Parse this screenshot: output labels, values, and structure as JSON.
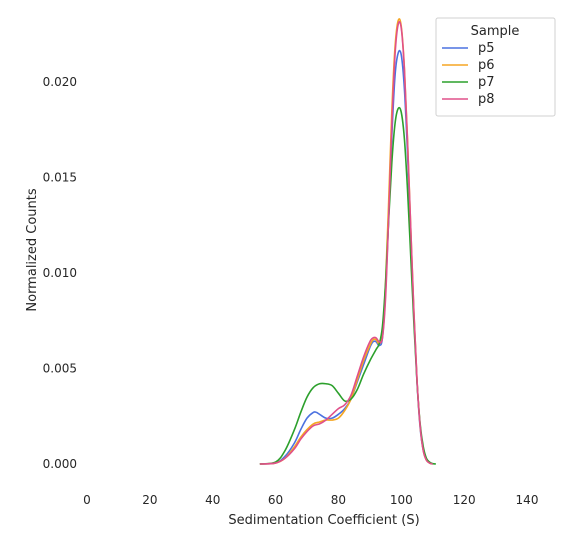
{
  "chart_data": {
    "type": "line",
    "xlabel": "Sedimentation Coefficient (S)",
    "ylabel": "Normalized Counts",
    "xlim": [
      0,
      140
    ],
    "ylim": [
      0,
      0.0235
    ],
    "xticks": [
      0,
      20,
      40,
      60,
      80,
      100,
      120,
      140
    ],
    "yticks": [
      0.0,
      0.005,
      0.01,
      0.015,
      0.02
    ],
    "ytick_labels": [
      "0.000",
      "0.005",
      "0.010",
      "0.015",
      "0.020"
    ],
    "grid": false,
    "legend": {
      "title": "Sample",
      "placement": "top-right"
    },
    "series": [
      {
        "name": "p5",
        "color": "#4c72e0",
        "x": [
          55,
          60,
          63,
          66,
          68,
          70,
          72,
          73,
          74,
          76,
          78,
          80,
          82,
          84,
          86,
          88,
          90,
          91,
          92,
          93,
          94,
          95,
          96,
          97,
          98,
          99,
          100,
          101,
          102,
          103,
          104,
          105,
          106,
          107,
          108,
          109,
          110
        ],
        "y": [
          0.0,
          5e-05,
          0.0004,
          0.0011,
          0.0018,
          0.0024,
          0.0027,
          0.0027,
          0.0026,
          0.0024,
          0.0024,
          0.0026,
          0.0029,
          0.0034,
          0.0043,
          0.0052,
          0.0061,
          0.0064,
          0.0064,
          0.0062,
          0.0066,
          0.009,
          0.013,
          0.0172,
          0.0203,
          0.0215,
          0.0214,
          0.0196,
          0.0162,
          0.012,
          0.0078,
          0.0043,
          0.0019,
          0.0007,
          0.0002,
          5e-05,
          0.0
        ]
      },
      {
        "name": "p6",
        "color": "#f5a623",
        "x": [
          55,
          60,
          63,
          66,
          68,
          70,
          72,
          74,
          76,
          78,
          80,
          82,
          84,
          86,
          88,
          90,
          91,
          92,
          93,
          94,
          95,
          96,
          97,
          98,
          99,
          100,
          101,
          102,
          103,
          104,
          105,
          106,
          107,
          108,
          109,
          110
        ],
        "y": [
          0.0,
          5e-05,
          0.0003,
          0.0009,
          0.0014,
          0.0018,
          0.0021,
          0.0022,
          0.0023,
          0.0023,
          0.0024,
          0.0028,
          0.0034,
          0.0044,
          0.0054,
          0.0062,
          0.0065,
          0.0065,
          0.0063,
          0.0068,
          0.0095,
          0.0138,
          0.0185,
          0.0218,
          0.0232,
          0.0229,
          0.0207,
          0.0169,
          0.0124,
          0.008,
          0.0044,
          0.002,
          0.0007,
          0.0002,
          5e-05,
          0.0
        ]
      },
      {
        "name": "p7",
        "color": "#2ca02c",
        "x": [
          55,
          60,
          63,
          66,
          68,
          70,
          72,
          74,
          76,
          78,
          80,
          82,
          84,
          86,
          88,
          90,
          92,
          93,
          94,
          95,
          96,
          97,
          98,
          99,
          100,
          101,
          102,
          103,
          104,
          105,
          106,
          107,
          108,
          109,
          110,
          111
        ],
        "y": [
          0.0,
          0.0001,
          0.0007,
          0.0018,
          0.0027,
          0.0035,
          0.004,
          0.0042,
          0.0042,
          0.0041,
          0.0037,
          0.0033,
          0.0034,
          0.0039,
          0.0047,
          0.0054,
          0.006,
          0.0063,
          0.0072,
          0.0095,
          0.0128,
          0.0158,
          0.0178,
          0.0186,
          0.0184,
          0.017,
          0.0143,
          0.0109,
          0.0074,
          0.0043,
          0.0021,
          0.0009,
          0.0003,
          0.0001,
          2e-05,
          0.0
        ]
      },
      {
        "name": "p8",
        "color": "#e0508a",
        "x": [
          55,
          60,
          63,
          66,
          68,
          70,
          72,
          74,
          76,
          78,
          80,
          82,
          84,
          86,
          88,
          90,
          91,
          92,
          93,
          94,
          95,
          96,
          97,
          98,
          99,
          100,
          101,
          102,
          103,
          104,
          105,
          106,
          107,
          108,
          109,
          110
        ],
        "y": [
          0.0,
          5e-05,
          0.0003,
          0.0008,
          0.0013,
          0.0017,
          0.002,
          0.0021,
          0.0023,
          0.0026,
          0.0029,
          0.0031,
          0.0036,
          0.0046,
          0.0056,
          0.0064,
          0.0066,
          0.0066,
          0.0064,
          0.0066,
          0.0087,
          0.013,
          0.0178,
          0.0214,
          0.023,
          0.0228,
          0.0206,
          0.0168,
          0.0124,
          0.008,
          0.0044,
          0.002,
          0.0007,
          0.0002,
          5e-05,
          0.0
        ]
      }
    ]
  }
}
